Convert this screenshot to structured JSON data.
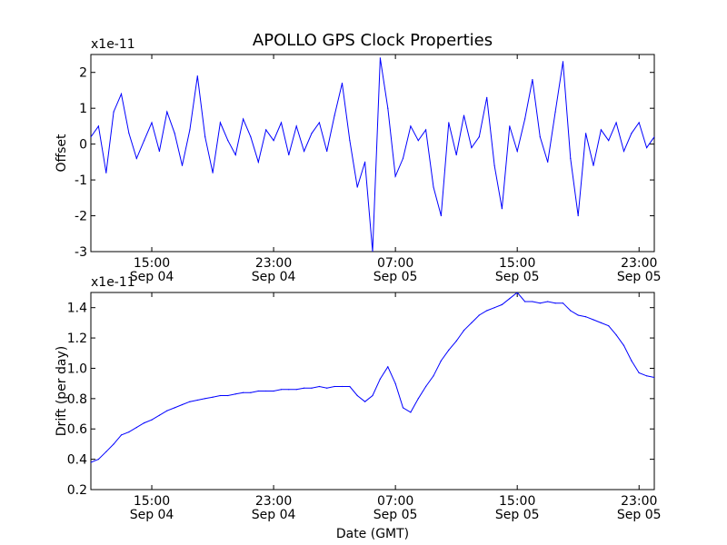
{
  "figure": {
    "title": "APOLLO GPS Clock Properties",
    "xlabel": "Date (GMT)"
  },
  "chart_data": [
    {
      "type": "line",
      "ylabel": "Offset",
      "multiplier": "x1e-11",
      "ylim": [
        -3,
        2.5
      ],
      "yticks": [
        "-3",
        "-2",
        "-1",
        "0",
        "1",
        "2"
      ],
      "xlim": [
        "Sep 04 11:00",
        "Sep 06 00:00"
      ],
      "xticks": [
        {
          "time": "15:00",
          "date": "Sep 04"
        },
        {
          "time": "23:00",
          "date": "Sep 04"
        },
        {
          "time": "07:00",
          "date": "Sep 05"
        },
        {
          "time": "15:00",
          "date": "Sep 05"
        },
        {
          "time": "23:00",
          "date": "Sep 05"
        }
      ],
      "color": "#0000ff",
      "series": [
        {
          "x": [
            "Sep 04 11:00",
            "Sep 04 11:30",
            "Sep 04 12:00",
            "Sep 04 12:30",
            "Sep 04 13:00",
            "Sep 04 13:30",
            "Sep 04 14:00",
            "Sep 04 14:30",
            "Sep 04 15:00",
            "Sep 04 15:30",
            "Sep 04 16:00",
            "Sep 04 16:30",
            "Sep 04 17:00",
            "Sep 04 17:30",
            "Sep 04 18:00",
            "Sep 04 18:30",
            "Sep 04 19:00",
            "Sep 04 19:30",
            "Sep 04 20:00",
            "Sep 04 20:30",
            "Sep 04 21:00",
            "Sep 04 21:30",
            "Sep 04 22:00",
            "Sep 04 22:30",
            "Sep 04 23:00",
            "Sep 04 23:30",
            "Sep 05 00:00",
            "Sep 05 00:30",
            "Sep 05 01:00",
            "Sep 05 01:30",
            "Sep 05 02:00",
            "Sep 05 02:30",
            "Sep 05 03:00",
            "Sep 05 03:30",
            "Sep 05 04:00",
            "Sep 05 04:30",
            "Sep 05 05:00",
            "Sep 05 05:30",
            "Sep 05 06:00",
            "Sep 05 06:30",
            "Sep 05 07:00",
            "Sep 05 07:30",
            "Sep 05 08:00",
            "Sep 05 08:30",
            "Sep 05 09:00",
            "Sep 05 09:30",
            "Sep 05 10:00",
            "Sep 05 10:30",
            "Sep 05 11:00",
            "Sep 05 11:30",
            "Sep 05 12:00",
            "Sep 05 12:30",
            "Sep 05 13:00",
            "Sep 05 13:30",
            "Sep 05 14:00",
            "Sep 05 14:30",
            "Sep 05 15:00",
            "Sep 05 15:30",
            "Sep 05 16:00",
            "Sep 05 16:30",
            "Sep 05 17:00",
            "Sep 05 17:30",
            "Sep 05 18:00",
            "Sep 05 18:30",
            "Sep 05 19:00",
            "Sep 05 19:30",
            "Sep 05 20:00",
            "Sep 05 20:30",
            "Sep 05 21:00",
            "Sep 05 21:30",
            "Sep 05 22:00",
            "Sep 05 22:30",
            "Sep 05 23:00",
            "Sep 05 23:30",
            "Sep 06 00:00"
          ],
          "y": [
            0.2,
            0.5,
            -0.8,
            0.9,
            1.4,
            0.3,
            -0.4,
            0.1,
            0.6,
            -0.2,
            0.9,
            0.3,
            -0.6,
            0.4,
            1.9,
            0.2,
            -0.8,
            0.6,
            0.1,
            -0.3,
            0.7,
            0.2,
            -0.5,
            0.4,
            0.1,
            0.6,
            -0.3,
            0.5,
            -0.2,
            0.3,
            0.6,
            -0.2,
            0.8,
            1.7,
            0.1,
            -1.2,
            -0.5,
            -3.0,
            2.4,
            1.0,
            -0.9,
            -0.4,
            0.5,
            0.1,
            0.4,
            -1.2,
            -2.0,
            0.6,
            -0.3,
            0.8,
            -0.1,
            0.2,
            1.3,
            -0.6,
            -1.8,
            0.5,
            -0.2,
            0.7,
            1.8,
            0.2,
            -0.5,
            0.9,
            2.3,
            -0.4,
            -2.0,
            0.3,
            -0.6,
            0.4,
            0.1,
            0.6,
            -0.2,
            0.3,
            0.6,
            -0.1,
            0.2
          ]
        }
      ]
    },
    {
      "type": "line",
      "ylabel": "Drift (per day)",
      "multiplier": "x1e-11",
      "ylim": [
        0.2,
        1.5
      ],
      "yticks": [
        "0.2",
        "0.4",
        "0.6",
        "0.8",
        "1.0",
        "1.2",
        "1.4"
      ],
      "xlim": [
        "Sep 04 11:00",
        "Sep 06 00:00"
      ],
      "xticks": [
        {
          "time": "15:00",
          "date": "Sep 04"
        },
        {
          "time": "23:00",
          "date": "Sep 04"
        },
        {
          "time": "07:00",
          "date": "Sep 05"
        },
        {
          "time": "15:00",
          "date": "Sep 05"
        },
        {
          "time": "23:00",
          "date": "Sep 05"
        }
      ],
      "color": "#0000ff",
      "series": [
        {
          "x": [
            "Sep 04 11:00",
            "Sep 04 11:30",
            "Sep 04 12:00",
            "Sep 04 12:30",
            "Sep 04 13:00",
            "Sep 04 13:30",
            "Sep 04 14:00",
            "Sep 04 14:30",
            "Sep 04 15:00",
            "Sep 04 15:30",
            "Sep 04 16:00",
            "Sep 04 16:30",
            "Sep 04 17:00",
            "Sep 04 17:30",
            "Sep 04 18:00",
            "Sep 04 18:30",
            "Sep 04 19:00",
            "Sep 04 19:30",
            "Sep 04 20:00",
            "Sep 04 20:30",
            "Sep 04 21:00",
            "Sep 04 21:30",
            "Sep 04 22:00",
            "Sep 04 22:30",
            "Sep 04 23:00",
            "Sep 04 23:30",
            "Sep 05 00:00",
            "Sep 05 00:30",
            "Sep 05 01:00",
            "Sep 05 01:30",
            "Sep 05 02:00",
            "Sep 05 02:30",
            "Sep 05 03:00",
            "Sep 05 03:30",
            "Sep 05 04:00",
            "Sep 05 04:30",
            "Sep 05 05:00",
            "Sep 05 05:30",
            "Sep 05 06:00",
            "Sep 05 06:30",
            "Sep 05 07:00",
            "Sep 05 07:30",
            "Sep 05 08:00",
            "Sep 05 08:30",
            "Sep 05 09:00",
            "Sep 05 09:30",
            "Sep 05 10:00",
            "Sep 05 10:30",
            "Sep 05 11:00",
            "Sep 05 11:30",
            "Sep 05 12:00",
            "Sep 05 12:30",
            "Sep 05 13:00",
            "Sep 05 13:30",
            "Sep 05 14:00",
            "Sep 05 14:30",
            "Sep 05 15:00",
            "Sep 05 15:30",
            "Sep 05 16:00",
            "Sep 05 16:30",
            "Sep 05 17:00",
            "Sep 05 17:30",
            "Sep 05 18:00",
            "Sep 05 18:30",
            "Sep 05 19:00",
            "Sep 05 19:30",
            "Sep 05 20:00",
            "Sep 05 20:30",
            "Sep 05 21:00",
            "Sep 05 21:30",
            "Sep 05 22:00",
            "Sep 05 22:30",
            "Sep 05 23:00",
            "Sep 05 23:30",
            "Sep 06 00:00"
          ],
          "y": [
            0.38,
            0.4,
            0.45,
            0.5,
            0.56,
            0.58,
            0.61,
            0.64,
            0.66,
            0.69,
            0.72,
            0.74,
            0.76,
            0.78,
            0.79,
            0.8,
            0.81,
            0.82,
            0.82,
            0.83,
            0.84,
            0.84,
            0.85,
            0.85,
            0.85,
            0.86,
            0.86,
            0.86,
            0.87,
            0.87,
            0.88,
            0.87,
            0.88,
            0.88,
            0.88,
            0.82,
            0.78,
            0.82,
            0.93,
            1.01,
            0.9,
            0.74,
            0.71,
            0.8,
            0.88,
            0.95,
            1.05,
            1.12,
            1.18,
            1.25,
            1.3,
            1.35,
            1.38,
            1.4,
            1.42,
            1.46,
            1.5,
            1.44,
            1.44,
            1.43,
            1.44,
            1.43,
            1.43,
            1.38,
            1.35,
            1.34,
            1.32,
            1.3,
            1.28,
            1.22,
            1.15,
            1.05,
            0.97,
            0.95,
            0.94
          ]
        }
      ]
    }
  ]
}
